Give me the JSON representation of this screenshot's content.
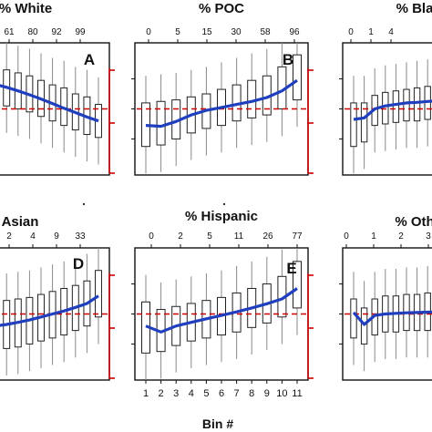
{
  "figure": {
    "x_label": "Bin #"
  },
  "chart_data": [
    {
      "type": "box",
      "letter": "A",
      "title": "% White",
      "top_ticks": [
        "61",
        "80",
        "92",
        "99"
      ],
      "bottom_ticks": [],
      "categories": [
        1,
        2,
        3,
        4,
        5,
        6,
        7,
        8,
        9,
        10,
        11
      ],
      "median_line": [
        0.9,
        0.82,
        0.72,
        0.6,
        0.47,
        0.33,
        0.18,
        0.02,
        -0.12,
        -0.27,
        -0.4
      ],
      "boxes": [
        {
          "q1": 0.3,
          "q3": 1.4
        },
        {
          "q1": 0.2,
          "q3": 1.35
        },
        {
          "q1": 0.1,
          "q3": 1.3
        },
        {
          "q1": 0.0,
          "q3": 1.2
        },
        {
          "q1": -0.1,
          "q3": 1.1
        },
        {
          "q1": -0.25,
          "q3": 0.95
        },
        {
          "q1": -0.4,
          "q3": 0.8
        },
        {
          "q1": -0.55,
          "q3": 0.7
        },
        {
          "q1": -0.7,
          "q3": 0.5
        },
        {
          "q1": -0.85,
          "q3": 0.4
        },
        {
          "q1": -0.95,
          "q3": 0.15
        }
      ],
      "reference_line": 0,
      "ylim": [
        -2.2,
        2.2
      ]
    },
    {
      "type": "box",
      "letter": "B",
      "title": "% POC",
      "top_ticks": [
        "0",
        "5",
        "15",
        "30",
        "58",
        "96"
      ],
      "bottom_ticks": [],
      "categories": [
        1,
        2,
        3,
        4,
        5,
        6,
        7,
        8,
        9,
        10,
        11
      ],
      "median_line": [
        -0.55,
        -0.58,
        -0.42,
        -0.2,
        -0.05,
        0.05,
        0.15,
        0.25,
        0.38,
        0.6,
        0.95
      ],
      "boxes": [
        {
          "q1": -1.25,
          "q3": 0.2
        },
        {
          "q1": -1.2,
          "q3": 0.25
        },
        {
          "q1": -1.0,
          "q3": 0.3
        },
        {
          "q1": -0.8,
          "q3": 0.4
        },
        {
          "q1": -0.65,
          "q3": 0.5
        },
        {
          "q1": -0.55,
          "q3": 0.65
        },
        {
          "q1": -0.4,
          "q3": 0.8
        },
        {
          "q1": -0.3,
          "q3": 0.95
        },
        {
          "q1": -0.2,
          "q3": 1.1
        },
        {
          "q1": 0.0,
          "q3": 1.4
        },
        {
          "q1": 0.3,
          "q3": 1.8
        }
      ],
      "reference_line": 0,
      "ylim": [
        -2.2,
        2.2
      ]
    },
    {
      "type": "box",
      "letter": "",
      "title": "% Bla",
      "top_ticks": [
        "0",
        "1",
        "4"
      ],
      "bottom_ticks": [],
      "categories": [
        1,
        2,
        3,
        4,
        5,
        6,
        7,
        8,
        9,
        10,
        11
      ],
      "median_line": [
        -0.35,
        -0.3,
        0.0,
        0.1,
        0.15,
        0.2,
        0.22,
        0.25,
        0.27,
        0.28,
        0.3
      ],
      "boxes": [
        {
          "q1": -1.25,
          "q3": 0.2
        },
        {
          "q1": -1.1,
          "q3": 0.2
        },
        {
          "q1": -0.55,
          "q3": 0.45
        },
        {
          "q1": -0.5,
          "q3": 0.55
        },
        {
          "q1": -0.45,
          "q3": 0.6
        },
        {
          "q1": -0.4,
          "q3": 0.65
        },
        {
          "q1": -0.4,
          "q3": 0.7
        },
        {
          "q1": -0.35,
          "q3": 0.75
        },
        {
          "q1": -0.35,
          "q3": 0.8
        },
        {
          "q1": -0.3,
          "q3": 0.85
        },
        {
          "q1": -0.3,
          "q3": 0.9
        }
      ],
      "reference_line": 0,
      "ylim": [
        -2.2,
        2.2
      ]
    },
    {
      "type": "box",
      "letter": "D",
      "title": "Asian",
      "top_ticks": [
        "2",
        "4",
        "9",
        "33"
      ],
      "bottom_ticks": [],
      "categories": [
        1,
        2,
        3,
        4,
        5,
        6,
        7,
        8,
        9,
        10,
        11
      ],
      "median_line": [
        -0.45,
        -0.4,
        -0.35,
        -0.28,
        -0.2,
        -0.1,
        0.0,
        0.1,
        0.22,
        0.35,
        0.6
      ],
      "boxes": [
        {
          "q1": -1.25,
          "q3": 0.35
        },
        {
          "q1": -1.2,
          "q3": 0.4
        },
        {
          "q1": -1.15,
          "q3": 0.45
        },
        {
          "q1": -1.1,
          "q3": 0.5
        },
        {
          "q1": -1.0,
          "q3": 0.55
        },
        {
          "q1": -0.9,
          "q3": 0.65
        },
        {
          "q1": -0.8,
          "q3": 0.75
        },
        {
          "q1": -0.7,
          "q3": 0.85
        },
        {
          "q1": -0.55,
          "q3": 0.95
        },
        {
          "q1": -0.4,
          "q3": 1.1
        },
        {
          "q1": -0.1,
          "q3": 1.45
        }
      ],
      "reference_line": 0,
      "ylim": [
        -2.2,
        2.2
      ]
    },
    {
      "type": "box",
      "letter": "E",
      "title": "% Hispanic",
      "top_ticks": [
        "0",
        "2",
        "5",
        "11",
        "26",
        "77"
      ],
      "bottom_ticks": [
        "1",
        "2",
        "3",
        "4",
        "5",
        "6",
        "7",
        "8",
        "9",
        "10",
        "11"
      ],
      "categories": [
        1,
        2,
        3,
        4,
        5,
        6,
        7,
        8,
        9,
        10,
        11
      ],
      "median_line": [
        -0.4,
        -0.6,
        -0.4,
        -0.28,
        -0.16,
        -0.05,
        0.07,
        0.2,
        0.34,
        0.5,
        0.85
      ],
      "boxes": [
        {
          "q1": -1.3,
          "q3": 0.4
        },
        {
          "q1": -1.25,
          "q3": 0.15
        },
        {
          "q1": -1.05,
          "q3": 0.25
        },
        {
          "q1": -0.9,
          "q3": 0.35
        },
        {
          "q1": -0.8,
          "q3": 0.45
        },
        {
          "q1": -0.7,
          "q3": 0.55
        },
        {
          "q1": -0.6,
          "q3": 0.7
        },
        {
          "q1": -0.45,
          "q3": 0.85
        },
        {
          "q1": -0.3,
          "q3": 1.0
        },
        {
          "q1": -0.1,
          "q3": 1.25
        },
        {
          "q1": 0.2,
          "q3": 1.75
        }
      ],
      "reference_line": 0,
      "ylim": [
        -2.2,
        2.2
      ]
    },
    {
      "type": "box",
      "letter": "",
      "title": "% Oth",
      "top_ticks": [
        "0",
        "1",
        "2",
        "3"
      ],
      "bottom_ticks": [],
      "categories": [
        1,
        2,
        3,
        4,
        5,
        6,
        7,
        8,
        9,
        10,
        11
      ],
      "median_line": [
        0.05,
        -0.35,
        -0.05,
        0.0,
        0.02,
        0.04,
        0.05,
        0.06,
        0.07,
        0.08,
        0.1
      ],
      "boxes": [
        {
          "q1": -0.8,
          "q3": 0.5
        },
        {
          "q1": -1.0,
          "q3": 0.2
        },
        {
          "q1": -0.7,
          "q3": 0.5
        },
        {
          "q1": -0.6,
          "q3": 0.6
        },
        {
          "q1": -0.6,
          "q3": 0.6
        },
        {
          "q1": -0.55,
          "q3": 0.65
        },
        {
          "q1": -0.55,
          "q3": 0.65
        },
        {
          "q1": -0.55,
          "q3": 0.7
        },
        {
          "q1": -0.5,
          "q3": 0.7
        },
        {
          "q1": -0.5,
          "q3": 0.75
        },
        {
          "q1": -0.5,
          "q3": 0.8
        }
      ],
      "reference_line": 0,
      "ylim": [
        -2.2,
        2.2
      ]
    }
  ]
}
